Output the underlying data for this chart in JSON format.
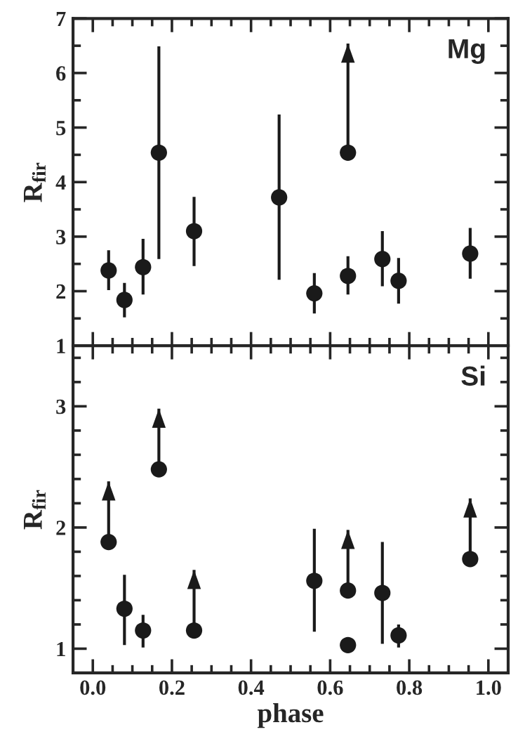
{
  "chart_data": [
    {
      "type": "scatter",
      "ylabel": "R$_{fir}$",
      "annotations": [
        "Mg"
      ],
      "xlim": [
        -0.05,
        1.05
      ],
      "xticks": [
        0,
        0.2,
        0.4,
        0.6,
        0.8,
        1
      ],
      "ylim": [
        1,
        7
      ],
      "yticks": [
        1,
        2,
        3,
        4,
        5,
        6,
        7
      ],
      "tick_labels": "y",
      "marker": "circle",
      "grid": false,
      "legend": false,
      "series": [
        {
          "color": "#1a1a1a",
          "x": [
            0.04,
            0.08,
            0.127,
            0.167,
            0.256,
            0.471,
            0.56,
            0.645,
            0.645,
            0.732,
            0.773,
            0.954
          ],
          "values": [
            2.38,
            1.84,
            2.44,
            4.54,
            3.1,
            3.72,
            1.96,
            4.54,
            2.28,
            2.59,
            2.19,
            2.69
          ],
          "errors": [
            [
              2.02,
              2.75
            ],
            [
              1.52,
              2.15
            ],
            [
              1.94,
              2.96
            ],
            [
              2.59,
              6.49
            ],
            [
              2.46,
              3.73
            ],
            [
              2.21,
              5.24
            ],
            [
              1.59,
              2.33
            ],
            [
              4.54,
              6.54
            ],
            [
              1.94,
              2.64
            ],
            [
              2.09,
              3.1
            ],
            [
              1.77,
              2.61
            ],
            [
              2.23,
              3.16
            ]
          ]
        }
      ]
    },
    {
      "type": "scatter",
      "xlabel": "phase",
      "ylabel": "R$_{fir}$",
      "annotations": [
        "Si"
      ],
      "xlim": [
        -0.05,
        1.05
      ],
      "xticks": [
        {
          "value": 0,
          "label": "0.0"
        },
        0.2,
        0.4,
        0.6,
        0.8,
        {
          "value": 1,
          "label": "1.0"
        }
      ],
      "ylim": [
        0.8,
        3.5
      ],
      "yticks": [
        1,
        2,
        3
      ],
      "marker": "circle",
      "grid": false,
      "legend": false,
      "series": [
        {
          "color": "#1a1a1a",
          "x": [
            0.04,
            0.08,
            0.127,
            0.167,
            0.256,
            0.56,
            0.645,
            0.645,
            0.732,
            0.773,
            0.954
          ],
          "values": [
            1.88,
            1.33,
            1.15,
            2.48,
            1.15,
            1.56,
            1.48,
            1.03,
            1.46,
            1.11,
            1.74
          ],
          "errors": [
            [
              1.88,
              2.38
            ],
            [
              1.03,
              1.61
            ],
            [
              1.01,
              1.28
            ],
            [
              2.48,
              2.98
            ],
            [
              1.15,
              1.65
            ],
            [
              1.14,
              1.99
            ],
            [
              1.48,
              1.98
            ],
            null,
            [
              1.04,
              1.88
            ],
            [
              1.01,
              1.2
            ],
            [
              1.74,
              2.24
            ]
          ]
        }
      ]
    }
  ]
}
